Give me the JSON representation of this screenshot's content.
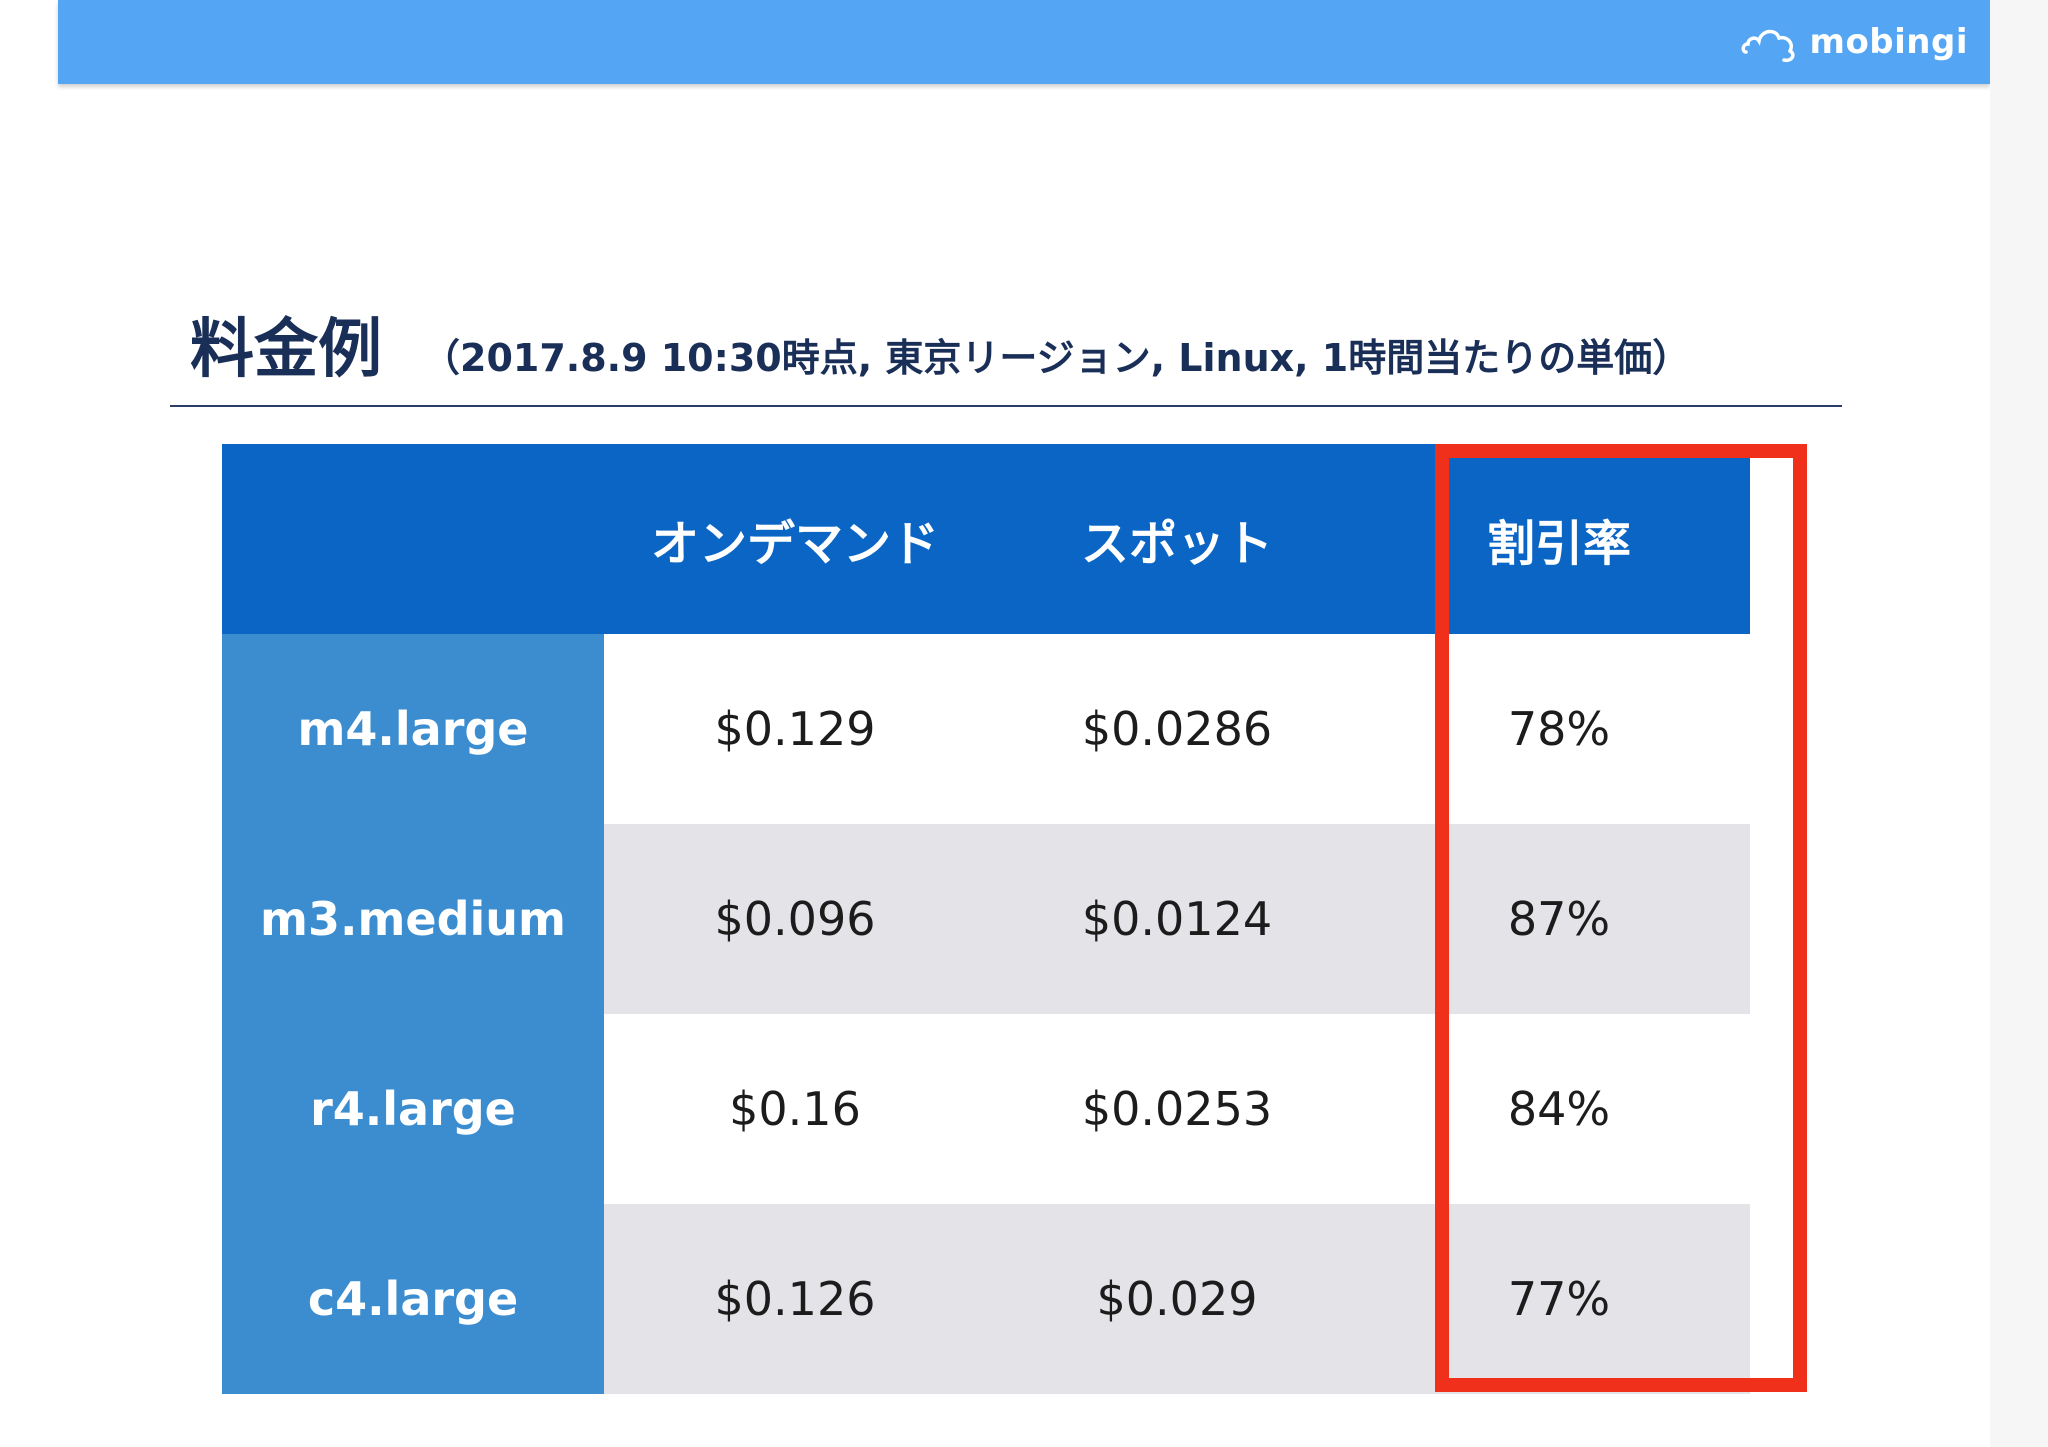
{
  "header": {
    "brand": "mobingi",
    "brand_color": "#54a6f5",
    "logo_icon": "cloud-icon"
  },
  "title": {
    "main": "料金例",
    "sub": "（2017.8.9 10:30時点, 東京リージョン, Linux, 1時間当たりの単価）"
  },
  "table": {
    "columns": [
      "",
      "オンデマンド",
      "スポット",
      "割引率"
    ],
    "rows": [
      {
        "instance": "m4.large",
        "on_demand": "$0.129",
        "spot": "$0.0286",
        "discount": "78%"
      },
      {
        "instance": "m3.medium",
        "on_demand": "$0.096",
        "spot": "$0.0124",
        "discount": "87%"
      },
      {
        "instance": "r4.large",
        "on_demand": "$0.16",
        "spot": "$0.0253",
        "discount": "84%"
      },
      {
        "instance": "c4.large",
        "on_demand": "$0.126",
        "spot": "$0.029",
        "discount": "77%"
      }
    ],
    "header_color": "#0a65c5",
    "stub_color": "#3c8dd0",
    "highlight_color": "#f0301b"
  }
}
